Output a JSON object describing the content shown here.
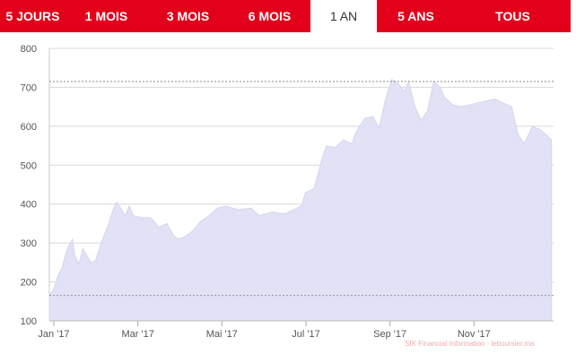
{
  "tabs": [
    {
      "label": "5 JOURS",
      "active": false
    },
    {
      "label": "1 MOIS",
      "active": false
    },
    {
      "label": "3 MOIS",
      "active": false
    },
    {
      "label": "6 MOIS",
      "active": false
    },
    {
      "label": "1 AN",
      "active": true
    },
    {
      "label": "5 ANS",
      "active": false
    },
    {
      "label": "TOUS",
      "active": false
    }
  ],
  "colors": {
    "tab_bar": "#e3001b",
    "area_fill": "#e1e2f5",
    "area_line": "#d3d5ef",
    "grid": "#d8d8d8",
    "reference_line": "#777777",
    "credit_text": "#f4a9a9"
  },
  "credit": "SIX Financial Information - leboursier.ma",
  "chart_data": {
    "type": "area",
    "title": "",
    "xlabel": "",
    "ylabel": "",
    "ylim": [
      100,
      800
    ],
    "yticks": [
      100,
      200,
      300,
      400,
      500,
      600,
      700,
      800
    ],
    "grid": true,
    "xtick_labels": [
      "Jan '17",
      "Mar '17",
      "Mai '17",
      "Jul '17",
      "Sep '17",
      "Nov '17"
    ],
    "xtick_months": [
      0,
      2,
      4,
      6,
      8,
      10
    ],
    "reference_lines": [
      715,
      165
    ],
    "series": [
      {
        "x": [
          0,
          0.1,
          0.2,
          0.3,
          0.4,
          0.45,
          0.55,
          0.6,
          0.7,
          0.8,
          0.9,
          1.0,
          1.1,
          1.25,
          1.4,
          1.5,
          1.6,
          1.7,
          1.8,
          1.9,
          2.0,
          2.2,
          2.4,
          2.5,
          2.6,
          2.8,
          2.95,
          3.05,
          3.2,
          3.4,
          3.6,
          3.8,
          4.0,
          4.2,
          4.5,
          4.8,
          5.0,
          5.3,
          5.6,
          5.8,
          6.0,
          6.1,
          6.3,
          6.5,
          6.6,
          6.8,
          7.0,
          7.2,
          7.3,
          7.5,
          7.7,
          7.85,
          8.0,
          8.15,
          8.3,
          8.45,
          8.55,
          8.7,
          8.85,
          9.0,
          9.15,
          9.3,
          9.4,
          9.6,
          9.8,
          10.0,
          10.2,
          10.4,
          10.6,
          10.8,
          11.0,
          11.15,
          11.3,
          11.5,
          11.7,
          11.85,
          11.95
        ],
        "values": [
          165,
          180,
          215,
          235,
          275,
          290,
          310,
          270,
          245,
          285,
          265,
          250,
          255,
          305,
          345,
          380,
          405,
          390,
          370,
          395,
          370,
          365,
          365,
          355,
          340,
          350,
          320,
          310,
          315,
          330,
          355,
          370,
          390,
          395,
          385,
          390,
          370,
          380,
          375,
          385,
          395,
          430,
          440,
          520,
          550,
          545,
          565,
          555,
          585,
          620,
          625,
          595,
          670,
          720,
          710,
          690,
          715,
          650,
          615,
          640,
          715,
          700,
          675,
          655,
          650,
          655,
          660,
          665,
          670,
          660,
          650,
          580,
          555,
          600,
          590,
          575,
          565
        ]
      }
    ]
  }
}
